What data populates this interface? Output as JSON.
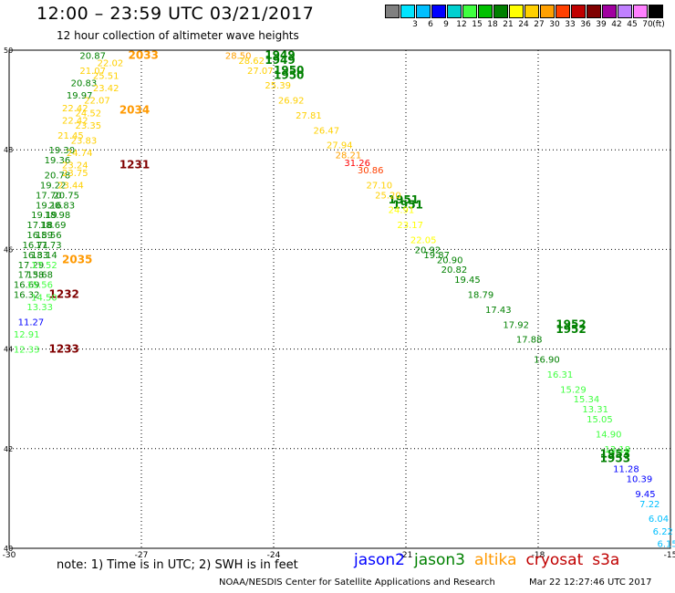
{
  "header": {
    "title": "12:00 – 23:59 UTC 03/21/2017",
    "subtitle": "12 hour collection of altimeter wave heights"
  },
  "colorbar": {
    "unit": "(ft)",
    "colors": [
      "#808080",
      "#00e5ff",
      "#00bfff",
      "#0000ff",
      "#00d0d0",
      "#40ff40",
      "#00c000",
      "#008000",
      "#ffff00",
      "#ffd000",
      "#ffa000",
      "#ff4000",
      "#c00000",
      "#800000",
      "#a000a0",
      "#c080ff",
      "#ff80ff",
      "#000000"
    ],
    "labels": [
      "",
      "3",
      "6",
      "9",
      "12",
      "15",
      "18",
      "21",
      "24",
      "27",
      "30",
      "33",
      "36",
      "39",
      "42",
      "45",
      "70",
      ""
    ]
  },
  "footer": {
    "note": "note:  1) Time is in UTC;  2) SWH is in feet",
    "satellites": [
      {
        "name": "jason2",
        "color": "#0000ff"
      },
      {
        "name": "jason3",
        "color": "#008000"
      },
      {
        "name": "altika",
        "color": "#ff9900"
      },
      {
        "name": "cryosat",
        "color": "#c00000"
      },
      {
        "name": "s3a",
        "color": "#c00000"
      }
    ],
    "credit": "NOAA/NESDIS Center for Satellite Applications and Research",
    "timestamp": "Mar 22 12:27:46 UTC 2017"
  },
  "chart_data": {
    "type": "scatter",
    "xlim": [
      -30,
      -15
    ],
    "ylim": [
      40,
      50
    ],
    "xticks": [
      "-30",
      "-27",
      "-24",
      "-21",
      "-18",
      "-15"
    ],
    "yticks": [
      "40",
      "42",
      "44",
      "46",
      "48",
      "50"
    ],
    "grid": true,
    "series": [
      {
        "name": "altika",
        "color": "#ff9900",
        "points": [
          {
            "x": -27.3,
            "y": 49.9,
            "label": "2033"
          },
          {
            "x": -27.5,
            "y": 48.8,
            "label": "2034"
          },
          {
            "x": -28.8,
            "y": 45.8,
            "label": "2035"
          }
        ]
      },
      {
        "name": "cryosat",
        "color": "#800000",
        "points": [
          {
            "x": -27.5,
            "y": 47.7,
            "label": "1231"
          },
          {
            "x": -29.1,
            "y": 45.1,
            "label": "1232"
          },
          {
            "x": -29.1,
            "y": 44.0,
            "label": "1233"
          }
        ]
      },
      {
        "name": "jason3",
        "color": "#008000",
        "points": [
          {
            "x": -24.2,
            "y": 49.9,
            "label": "1949"
          },
          {
            "x": -24.2,
            "y": 49.8,
            "label": "1949"
          },
          {
            "x": -24.0,
            "y": 49.6,
            "label": "1950"
          },
          {
            "x": -24.0,
            "y": 49.5,
            "label": "1950"
          },
          {
            "x": -21.4,
            "y": 47.0,
            "label": "1951"
          },
          {
            "x": -21.3,
            "y": 46.9,
            "label": "1951"
          },
          {
            "x": -17.6,
            "y": 44.5,
            "label": "1952"
          },
          {
            "x": -17.6,
            "y": 44.4,
            "label": "1952"
          },
          {
            "x": -16.6,
            "y": 41.9,
            "label": "1953"
          },
          {
            "x": -16.6,
            "y": 41.8,
            "label": "1953"
          }
        ]
      },
      {
        "name": "track_values",
        "color": "#000000",
        "points": [
          {
            "x": -28.4,
            "y": 49.9,
            "label": "20.87",
            "color": "#008000"
          },
          {
            "x": -28.0,
            "y": 49.75,
            "label": "22.02",
            "color": "#ffd000"
          },
          {
            "x": -28.4,
            "y": 49.6,
            "label": "21.07",
            "color": "#ffd000"
          },
          {
            "x": -28.1,
            "y": 49.5,
            "label": "25.51",
            "color": "#ffd000"
          },
          {
            "x": -28.6,
            "y": 49.35,
            "label": "20.83",
            "color": "#008000"
          },
          {
            "x": -28.1,
            "y": 49.25,
            "label": "23.42",
            "color": "#ffd000"
          },
          {
            "x": -28.7,
            "y": 49.1,
            "label": "19.97",
            "color": "#008000"
          },
          {
            "x": -28.3,
            "y": 49.0,
            "label": "22.07",
            "color": "#ffd000"
          },
          {
            "x": -28.8,
            "y": 48.85,
            "label": "22.42",
            "color": "#ffd000"
          },
          {
            "x": -28.5,
            "y": 48.75,
            "label": "24.52",
            "color": "#ffd000"
          },
          {
            "x": -28.8,
            "y": 48.6,
            "label": "22.42",
            "color": "#ffd000"
          },
          {
            "x": -28.5,
            "y": 48.5,
            "label": "23.35",
            "color": "#ffd000"
          },
          {
            "x": -28.9,
            "y": 48.3,
            "label": "21.45",
            "color": "#ffd000"
          },
          {
            "x": -28.6,
            "y": 48.2,
            "label": "23.83",
            "color": "#ffd000"
          },
          {
            "x": -29.1,
            "y": 48.0,
            "label": "19.30",
            "color": "#008000"
          },
          {
            "x": -28.7,
            "y": 47.95,
            "label": "24.74",
            "color": "#ffd000"
          },
          {
            "x": -29.2,
            "y": 47.8,
            "label": "19.36",
            "color": "#008000"
          },
          {
            "x": -28.8,
            "y": 47.7,
            "label": "23.24",
            "color": "#ffd000"
          },
          {
            "x": -29.2,
            "y": 47.5,
            "label": "20.78",
            "color": "#008000"
          },
          {
            "x": -28.8,
            "y": 47.55,
            "label": "23.75",
            "color": "#ffd000"
          },
          {
            "x": -29.3,
            "y": 47.3,
            "label": "19.22",
            "color": "#008000"
          },
          {
            "x": -28.9,
            "y": 47.3,
            "label": "23.44",
            "color": "#ffd000"
          },
          {
            "x": -29.4,
            "y": 47.1,
            "label": "17.70",
            "color": "#008000"
          },
          {
            "x": -29.0,
            "y": 47.1,
            "label": "20.75",
            "color": "#008000"
          },
          {
            "x": -29.4,
            "y": 46.9,
            "label": "19.16",
            "color": "#008000"
          },
          {
            "x": -29.1,
            "y": 46.9,
            "label": "20.83",
            "color": "#008000"
          },
          {
            "x": -29.5,
            "y": 46.7,
            "label": "19.19",
            "color": "#008000"
          },
          {
            "x": -29.2,
            "y": 46.7,
            "label": "18.98",
            "color": "#008000"
          },
          {
            "x": -29.6,
            "y": 46.5,
            "label": "17.18",
            "color": "#008000"
          },
          {
            "x": -29.3,
            "y": 46.5,
            "label": "18.69",
            "color": "#008000"
          },
          {
            "x": -29.6,
            "y": 46.3,
            "label": "16.59",
            "color": "#008000"
          },
          {
            "x": -29.4,
            "y": 46.3,
            "label": "18.56",
            "color": "#008000"
          },
          {
            "x": -29.7,
            "y": 46.1,
            "label": "16.71",
            "color": "#008000"
          },
          {
            "x": -29.4,
            "y": 46.1,
            "label": "17.73",
            "color": "#008000"
          },
          {
            "x": -29.7,
            "y": 45.9,
            "label": "16.33",
            "color": "#008000"
          },
          {
            "x": -29.5,
            "y": 45.9,
            "label": "18.14",
            "color": "#008000"
          },
          {
            "x": -29.8,
            "y": 45.7,
            "label": "17.29",
            "color": "#008000"
          },
          {
            "x": -29.5,
            "y": 45.7,
            "label": "17.52",
            "color": "#40ff40"
          },
          {
            "x": -29.8,
            "y": 45.5,
            "label": "17.38",
            "color": "#008000"
          },
          {
            "x": -29.6,
            "y": 45.5,
            "label": "15.68",
            "color": "#008000"
          },
          {
            "x": -29.9,
            "y": 45.3,
            "label": "16.69",
            "color": "#008000"
          },
          {
            "x": -29.6,
            "y": 45.3,
            "label": "15.56",
            "color": "#40ff40"
          },
          {
            "x": -29.9,
            "y": 45.1,
            "label": "16.32",
            "color": "#008000"
          },
          {
            "x": -29.5,
            "y": 45.05,
            "label": "14.50",
            "color": "#40ff40"
          },
          {
            "x": -29.6,
            "y": 44.85,
            "label": "13.33",
            "color": "#40ff40"
          },
          {
            "x": -29.8,
            "y": 44.55,
            "label": "11.27",
            "color": "#0000ff"
          },
          {
            "x": -29.9,
            "y": 44.3,
            "label": "12.91",
            "color": "#40ff40"
          },
          {
            "x": -29.9,
            "y": 44.0,
            "label": "12.33",
            "color": "#40ff40"
          },
          {
            "x": -25.1,
            "y": 49.9,
            "label": "28.50",
            "color": "#ffa000"
          },
          {
            "x": -24.8,
            "y": 49.8,
            "label": "28.62",
            "color": "#ffd000"
          },
          {
            "x": -24.6,
            "y": 49.6,
            "label": "27.07",
            "color": "#ffd000"
          },
          {
            "x": -24.2,
            "y": 49.3,
            "label": "25.39",
            "color": "#ffd000"
          },
          {
            "x": -23.9,
            "y": 49.0,
            "label": "26.92",
            "color": "#ffd000"
          },
          {
            "x": -23.5,
            "y": 48.7,
            "label": "27.81",
            "color": "#ffd000"
          },
          {
            "x": -23.1,
            "y": 48.4,
            "label": "26.47",
            "color": "#ffd000"
          },
          {
            "x": -22.8,
            "y": 48.1,
            "label": "27.94",
            "color": "#ffd000"
          },
          {
            "x": -22.6,
            "y": 47.9,
            "label": "28.21",
            "color": "#ffa000"
          },
          {
            "x": -22.4,
            "y": 47.75,
            "label": "31.26",
            "color": "#ff0000"
          },
          {
            "x": -22.1,
            "y": 47.6,
            "label": "30.86",
            "color": "#ff4000"
          },
          {
            "x": -21.9,
            "y": 47.3,
            "label": "27.10",
            "color": "#ffd000"
          },
          {
            "x": -21.7,
            "y": 47.1,
            "label": "25.20",
            "color": "#ffd000"
          },
          {
            "x": -21.4,
            "y": 46.8,
            "label": "24.91",
            "color": "#ffff00"
          },
          {
            "x": -21.2,
            "y": 46.5,
            "label": "23.17",
            "color": "#ffff00"
          },
          {
            "x": -20.9,
            "y": 46.2,
            "label": "22.05",
            "color": "#ffff00"
          },
          {
            "x": -20.8,
            "y": 46.0,
            "label": "20.92",
            "color": "#008000"
          },
          {
            "x": -20.6,
            "y": 45.9,
            "label": "19.87",
            "color": "#008000"
          },
          {
            "x": -20.3,
            "y": 45.8,
            "label": "20.90",
            "color": "#008000"
          },
          {
            "x": -20.2,
            "y": 45.6,
            "label": "20.82",
            "color": "#008000"
          },
          {
            "x": -19.9,
            "y": 45.4,
            "label": "19.45",
            "color": "#008000"
          },
          {
            "x": -19.6,
            "y": 45.1,
            "label": "18.79",
            "color": "#008000"
          },
          {
            "x": -19.2,
            "y": 44.8,
            "label": "17.43",
            "color": "#008000"
          },
          {
            "x": -18.8,
            "y": 44.5,
            "label": "17.92",
            "color": "#008000"
          },
          {
            "x": -18.5,
            "y": 44.2,
            "label": "17.88",
            "color": "#008000"
          },
          {
            "x": -18.1,
            "y": 43.8,
            "label": "16.90",
            "color": "#008000"
          },
          {
            "x": -17.8,
            "y": 43.5,
            "label": "16.31",
            "color": "#40ff40"
          },
          {
            "x": -17.5,
            "y": 43.2,
            "label": "15.29",
            "color": "#40ff40"
          },
          {
            "x": -17.2,
            "y": 43.0,
            "label": "15.34",
            "color": "#40ff40"
          },
          {
            "x": -17.0,
            "y": 42.8,
            "label": "13.31",
            "color": "#40ff40"
          },
          {
            "x": -16.9,
            "y": 42.6,
            "label": "15.05",
            "color": "#40ff40"
          },
          {
            "x": -16.7,
            "y": 42.3,
            "label": "14.90",
            "color": "#40ff40"
          },
          {
            "x": -16.5,
            "y": 42.0,
            "label": "13.18",
            "color": "#40ff40"
          },
          {
            "x": -16.3,
            "y": 41.6,
            "label": "11.28",
            "color": "#0000ff"
          },
          {
            "x": -16.0,
            "y": 41.4,
            "label": "10.39",
            "color": "#0000ff"
          },
          {
            "x": -15.8,
            "y": 41.1,
            "label": "9.45",
            "color": "#0000ff"
          },
          {
            "x": -15.7,
            "y": 40.9,
            "label": "7.22",
            "color": "#00bfff"
          },
          {
            "x": -15.5,
            "y": 40.6,
            "label": "6.04",
            "color": "#00bfff"
          },
          {
            "x": -15.4,
            "y": 40.35,
            "label": "6.22",
            "color": "#00bfff"
          },
          {
            "x": -15.3,
            "y": 40.1,
            "label": "6.15",
            "color": "#00bfff"
          }
        ]
      }
    ]
  }
}
